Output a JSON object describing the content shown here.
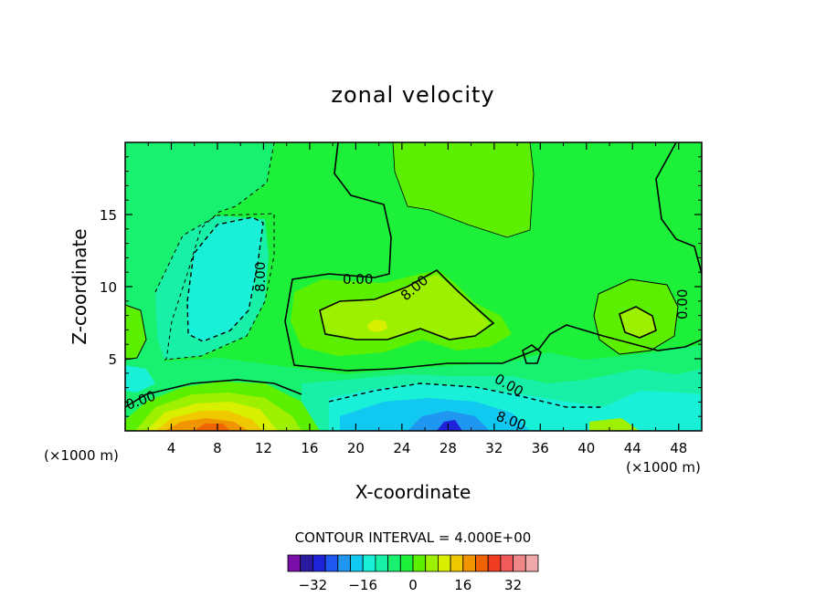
{
  "chart_data": {
    "type": "contour",
    "title": "zonal velocity",
    "xlabel": "X-coordinate",
    "ylabel": "Z-coordinate",
    "x_units": "(×1000 m)",
    "x_units_right": "(×1000 m)",
    "xlim": [
      0,
      50
    ],
    "ylim": [
      0,
      20
    ],
    "x_ticks": [
      4,
      8,
      12,
      16,
      20,
      24,
      28,
      32,
      36,
      40,
      44,
      48
    ],
    "y_ticks": [
      5,
      10,
      15
    ],
    "contour_interval_label": "CONTOUR INTERVAL = 4.000E+00",
    "contour_interval": 4.0,
    "contour_labels": [
      "0.00",
      "0.00",
      "0.00",
      "0.00",
      "8.00",
      "8.00",
      "8.00"
    ],
    "colorbar": {
      "colors": [
        "#7a0ea8",
        "#2a1aa0",
        "#1e22d8",
        "#1f58f0",
        "#1f96f0",
        "#10c8f0",
        "#18f0d8",
        "#18f0a8",
        "#18f070",
        "#1cf038",
        "#5cf000",
        "#9cf000",
        "#d8f000",
        "#f0c800",
        "#f09400",
        "#f06400",
        "#f03c20",
        "#f05a5a",
        "#f08888",
        "#f0a8a8"
      ],
      "tick_labels": [
        "-32",
        "-16",
        "0",
        "16",
        "32"
      ],
      "tick_values": [
        -32,
        -16,
        0,
        16,
        32
      ],
      "range": [
        -40,
        40
      ]
    },
    "grid": false
  }
}
